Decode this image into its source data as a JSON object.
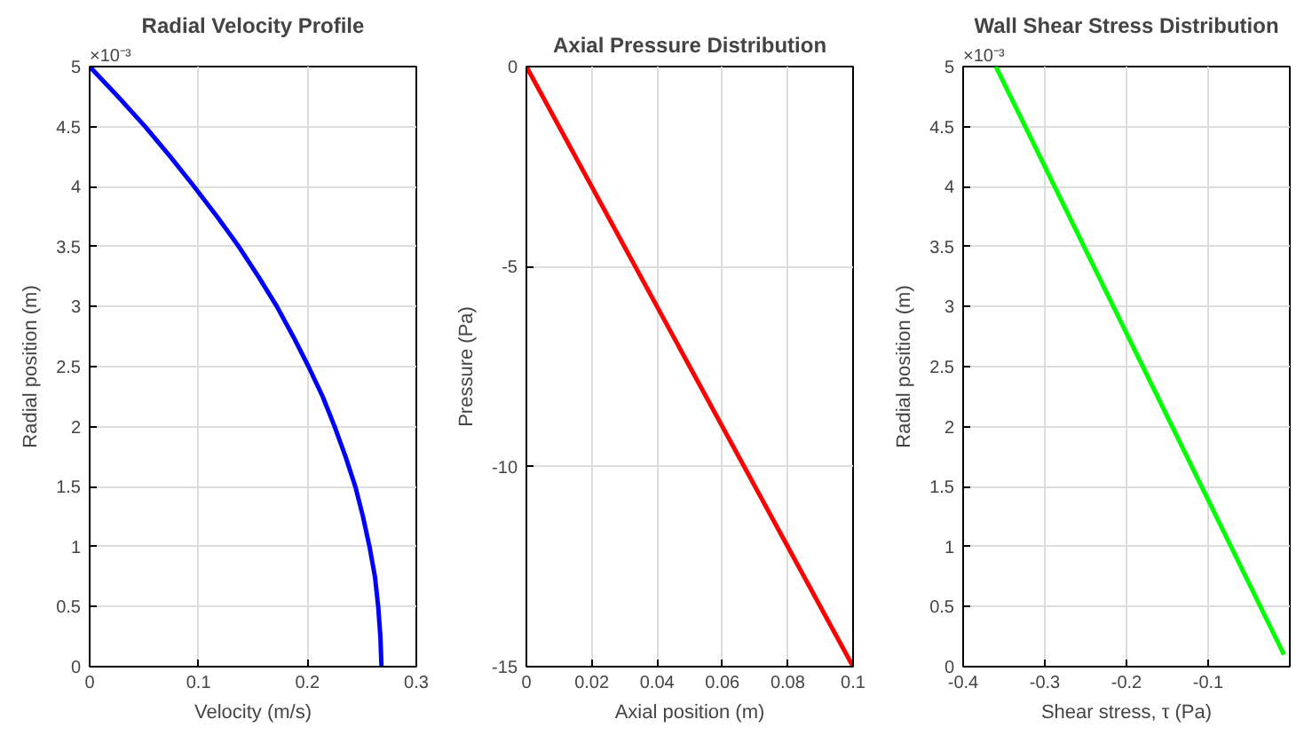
{
  "chart_data": [
    {
      "type": "line",
      "title": "Radial Velocity Profile",
      "xlabel": "Velocity (m/s)",
      "ylabel": "Radial position (m)",
      "annotations": [
        "×10⁻³"
      ],
      "xlim": [
        0,
        0.3
      ],
      "ylim": [
        0,
        5
      ],
      "xticks": [
        0,
        0.1,
        0.2,
        0.3
      ],
      "yticks": [
        0,
        0.5,
        1,
        1.5,
        2,
        2.5,
        3,
        3.5,
        4,
        4.5,
        5
      ],
      "grid": true,
      "series": [
        {
          "color": "#0000ff",
          "x": [
            0,
            0.026,
            0.051,
            0.074,
            0.096,
            0.117,
            0.137,
            0.155,
            0.172,
            0.187,
            0.201,
            0.214,
            0.225,
            0.235,
            0.244,
            0.251,
            0.257,
            0.262,
            0.265,
            0.267,
            0.268
          ],
          "values": [
            5,
            4.75,
            4.5,
            4.25,
            4,
            3.75,
            3.5,
            3.25,
            3,
            2.75,
            2.5,
            2.25,
            2,
            1.75,
            1.5,
            1.25,
            1,
            0.75,
            0.5,
            0.25,
            0
          ]
        }
      ]
    },
    {
      "type": "line",
      "title": "Axial Pressure Distribution",
      "xlabel": "Axial position (m)",
      "ylabel": "Pressure (Pa)",
      "xlim": [
        0,
        0.1
      ],
      "ylim": [
        -15,
        0
      ],
      "xticks": [
        0,
        0.02,
        0.04,
        0.06,
        0.08,
        0.1
      ],
      "yticks": [
        -15,
        -10,
        -5,
        0
      ],
      "grid": true,
      "series": [
        {
          "color": "#ff0000",
          "x": [
            0,
            0.1
          ],
          "values": [
            0,
            -15
          ]
        }
      ]
    },
    {
      "type": "line",
      "title": "Wall Shear Stress Distribution",
      "xlabel": "Shear stress, τ (Pa)",
      "ylabel": "Radial position (m)",
      "annotations": [
        "×10⁻³"
      ],
      "xlim": [
        -0.4,
        0
      ],
      "ylim": [
        0,
        5
      ],
      "xticks": [
        -0.4,
        -0.3,
        -0.2,
        -0.1
      ],
      "yticks": [
        0,
        0.5,
        1,
        1.5,
        2,
        2.5,
        3,
        3.5,
        4,
        4.5,
        5
      ],
      "grid": true,
      "series": [
        {
          "color": "#00ff00",
          "x": [
            -0.36,
            -0.0072
          ],
          "values": [
            5,
            0.1
          ]
        }
      ]
    }
  ]
}
